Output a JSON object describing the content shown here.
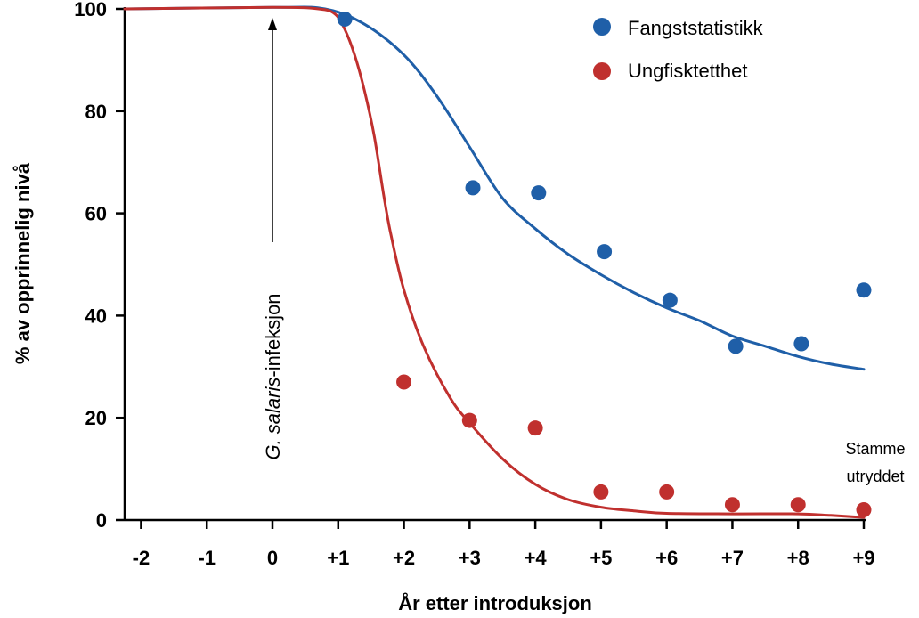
{
  "chart_data": {
    "type": "scatter",
    "xlabel": "År etter introduksjon",
    "ylabel": "% av opprinnelig nivå",
    "x_ticks": [
      {
        "value": -2,
        "label": "-2"
      },
      {
        "value": -1,
        "label": "-1"
      },
      {
        "value": 0,
        "label": "0"
      },
      {
        "value": 1,
        "label": "+1"
      },
      {
        "value": 2,
        "label": "+2"
      },
      {
        "value": 3,
        "label": "+3"
      },
      {
        "value": 4,
        "label": "+4"
      },
      {
        "value": 5,
        "label": "+5"
      },
      {
        "value": 6,
        "label": "+6"
      },
      {
        "value": 7,
        "label": "+7"
      },
      {
        "value": 8,
        "label": "+8"
      },
      {
        "value": 9,
        "label": "+9"
      }
    ],
    "y_ticks": [
      {
        "value": 0,
        "label": "0"
      },
      {
        "value": 20,
        "label": "20"
      },
      {
        "value": 40,
        "label": "40"
      },
      {
        "value": 60,
        "label": "60"
      },
      {
        "value": 80,
        "label": "80"
      },
      {
        "value": 100,
        "label": "100"
      }
    ],
    "xlim": [
      -2.25,
      9
    ],
    "ylim": [
      0,
      100
    ],
    "grid": false,
    "legend_position": "top-right",
    "series": [
      {
        "name": "Fangststatistikk",
        "color": "#1f5fa8",
        "points": [
          {
            "x": 1.1,
            "y": 98
          },
          {
            "x": 3.05,
            "y": 65
          },
          {
            "x": 4.05,
            "y": 64
          },
          {
            "x": 5.05,
            "y": 52.5
          },
          {
            "x": 6.05,
            "y": 43
          },
          {
            "x": 7.05,
            "y": 34
          },
          {
            "x": 8.05,
            "y": 34.5
          },
          {
            "x": 9.0,
            "y": 45
          }
        ],
        "curve": [
          {
            "x": -2.25,
            "y": 100
          },
          {
            "x": 0,
            "y": 100.3
          },
          {
            "x": 0.8,
            "y": 100
          },
          {
            "x": 1.4,
            "y": 97
          },
          {
            "x": 2.0,
            "y": 91
          },
          {
            "x": 2.5,
            "y": 83
          },
          {
            "x": 3.0,
            "y": 73
          },
          {
            "x": 3.5,
            "y": 63
          },
          {
            "x": 4.0,
            "y": 57
          },
          {
            "x": 4.5,
            "y": 52
          },
          {
            "x": 5.0,
            "y": 48
          },
          {
            "x": 5.5,
            "y": 44.5
          },
          {
            "x": 6.0,
            "y": 41.5
          },
          {
            "x": 6.5,
            "y": 39
          },
          {
            "x": 7.0,
            "y": 36
          },
          {
            "x": 7.5,
            "y": 34
          },
          {
            "x": 8.0,
            "y": 32
          },
          {
            "x": 8.5,
            "y": 30.5
          },
          {
            "x": 9.0,
            "y": 29.5
          }
        ]
      },
      {
        "name": "Ungfisktetthet",
        "color": "#c0302e",
        "points": [
          {
            "x": 2.0,
            "y": 27
          },
          {
            "x": 3.0,
            "y": 19.5
          },
          {
            "x": 4.0,
            "y": 18
          },
          {
            "x": 5.0,
            "y": 5.5
          },
          {
            "x": 6.0,
            "y": 5.5
          },
          {
            "x": 7.0,
            "y": 3
          },
          {
            "x": 8.0,
            "y": 3
          },
          {
            "x": 9.0,
            "y": 2
          }
        ],
        "curve": [
          {
            "x": -2.25,
            "y": 100
          },
          {
            "x": 0,
            "y": 100.3
          },
          {
            "x": 0.7,
            "y": 100
          },
          {
            "x": 0.95,
            "y": 99
          },
          {
            "x": 1.1,
            "y": 96
          },
          {
            "x": 1.25,
            "y": 91
          },
          {
            "x": 1.4,
            "y": 84
          },
          {
            "x": 1.55,
            "y": 75
          },
          {
            "x": 1.7,
            "y": 63
          },
          {
            "x": 1.8,
            "y": 56
          },
          {
            "x": 2.0,
            "y": 45
          },
          {
            "x": 2.3,
            "y": 34
          },
          {
            "x": 2.7,
            "y": 24
          },
          {
            "x": 3.0,
            "y": 19
          },
          {
            "x": 3.5,
            "y": 12
          },
          {
            "x": 4.0,
            "y": 7
          },
          {
            "x": 4.5,
            "y": 4
          },
          {
            "x": 5.0,
            "y": 2.5
          },
          {
            "x": 5.5,
            "y": 1.8
          },
          {
            "x": 6.0,
            "y": 1.3
          },
          {
            "x": 7.0,
            "y": 1.2
          },
          {
            "x": 8.0,
            "y": 1.2
          },
          {
            "x": 8.5,
            "y": 0.9
          },
          {
            "x": 9.0,
            "y": 0.5
          }
        ]
      }
    ],
    "annotations": {
      "infection_label_prefix": "G. ",
      "infection_label_italic": "salaris",
      "infection_label_suffix": "-infeksjon",
      "infection_x": 0,
      "stock_line1": "Stamme",
      "stock_line2": "utryddet"
    }
  }
}
